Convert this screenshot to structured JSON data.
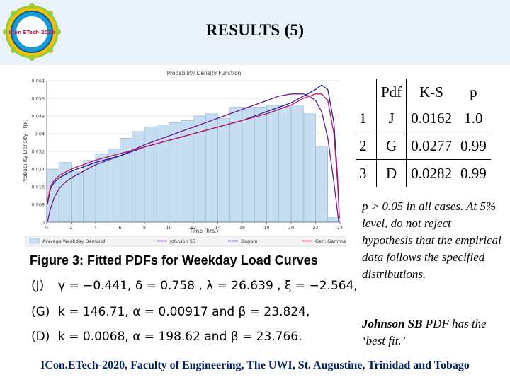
{
  "slide": {
    "title": "RESULTS (5)",
    "logo_text": "ICon ETech-2020",
    "footer": "ICon.ETech-2020, Faculty of Engineering, The UWI, St. Augustine, Trinidad and Tobago"
  },
  "chart_data": {
    "type": "bar",
    "title": "Probability Density Function",
    "xlabel": "Time (hrs.)",
    "ylabel": "Probability Density - f(x)",
    "xlim": [
      0,
      24
    ],
    "ylim": [
      0,
      0.064
    ],
    "x_ticks": [
      "0",
      "2",
      "4",
      "6",
      "8",
      "10",
      "12",
      "14",
      "16",
      "18",
      "20",
      "22",
      "24"
    ],
    "y_ticks": [
      "0",
      "0.008",
      "0.016",
      "0.024",
      "0.032",
      "0.04",
      "0.048",
      "0.056",
      "0.064"
    ],
    "bin_edges": [
      0,
      1,
      2,
      3,
      4,
      5,
      6,
      7,
      8,
      9,
      10,
      11,
      12,
      13,
      14,
      15,
      16,
      17,
      18,
      19,
      20,
      21,
      22,
      23,
      24
    ],
    "values": [
      0.024,
      0.027,
      0.023,
      0.028,
      0.031,
      0.033,
      0.038,
      0.041,
      0.043,
      0.044,
      0.045,
      0.046,
      0.048,
      0.049,
      0.047,
      0.052,
      0.052,
      0.052,
      0.053,
      0.053,
      0.053,
      0.049,
      0.034,
      0.002
    ],
    "series": [
      {
        "name": "Johnson SB",
        "color": "#6a1b9a",
        "x": [
          0.05,
          0.3,
          0.6,
          1,
          1.5,
          2,
          3,
          4,
          6,
          8,
          10,
          12,
          14,
          16,
          18,
          19,
          20,
          21,
          21.5,
          22,
          22.5,
          23,
          23.5,
          23.9
        ],
        "y": [
          0.0,
          0.006,
          0.011,
          0.015,
          0.018,
          0.02,
          0.023,
          0.026,
          0.03,
          0.035,
          0.039,
          0.043,
          0.047,
          0.051,
          0.055,
          0.057,
          0.058,
          0.058,
          0.057,
          0.055,
          0.05,
          0.038,
          0.018,
          0.0
        ]
      },
      {
        "name": "Dagum",
        "color": "#1f1f9e",
        "x": [
          0.05,
          0.3,
          0.6,
          1,
          2,
          4,
          6,
          8,
          10,
          12,
          14,
          16,
          18,
          20,
          21,
          22,
          22.5,
          23,
          23.5,
          23.8,
          23.95
        ],
        "y": [
          0.008,
          0.015,
          0.018,
          0.02,
          0.023,
          0.027,
          0.03,
          0.034,
          0.037,
          0.04,
          0.043,
          0.046,
          0.05,
          0.054,
          0.057,
          0.06,
          0.062,
          0.06,
          0.045,
          0.02,
          0.002
        ]
      },
      {
        "name": "Gen. Gamma",
        "color": "#c2185b",
        "x": [
          0.05,
          0.3,
          0.6,
          1,
          2,
          4,
          6,
          8,
          10,
          12,
          14,
          16,
          18,
          20,
          21,
          22,
          22.5,
          23,
          23.5,
          23.8,
          23.95
        ],
        "y": [
          0.009,
          0.016,
          0.019,
          0.021,
          0.024,
          0.028,
          0.031,
          0.034,
          0.037,
          0.04,
          0.043,
          0.046,
          0.049,
          0.053,
          0.056,
          0.058,
          0.058,
          0.055,
          0.04,
          0.018,
          0.002
        ]
      }
    ],
    "legend": [
      "Average Weekday Demand",
      "Johnson SB",
      "Dagum",
      "Gen. Gamma"
    ],
    "legend_position": "bottom",
    "bar_color": "#c6ddf2"
  },
  "figure": {
    "caption": "Figure 3: Fitted PDFs for Weekday Load Curves"
  },
  "params": [
    {
      "label": "(J)",
      "text": "γ = −0.441, δ = 0.758 , λ = 26.639 , ξ = −2.564,"
    },
    {
      "label": "(G)",
      "text": "k = 146.71, α = 0.00917 and β = 23.824,"
    },
    {
      "label": "(D)",
      "text": "k = 0.0068, α = 198.62 and β = 23.766."
    }
  ],
  "ks_table": {
    "headers": [
      "Pdf",
      "K-S",
      "p"
    ],
    "rows": [
      {
        "no": "1",
        "pdf": "J",
        "ks": "0.0162",
        "p": "1.0"
      },
      {
        "no": "2",
        "pdf": "G",
        "ks": "0.0277",
        "p": "0.99"
      },
      {
        "no": "3",
        "pdf": "D",
        "ks": "0.0282",
        "p": "0.99"
      }
    ]
  },
  "notes": {
    "p_value": "p > 0.05 in all cases. At 5% level, do not reject hypothesis that the empirical data follows the specified distributions.",
    "best_fit_name": "Johnson SB",
    "best_fit_rest": " PDF has the ‘best fit.’"
  },
  "colors": {
    "footer": "#002060",
    "header_band": "#eaf3fb"
  }
}
